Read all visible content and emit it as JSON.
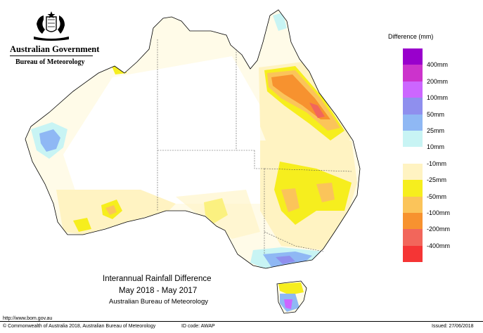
{
  "header": {
    "government": "Australian Government",
    "bureau": "Bureau of Meteorology",
    "crest_icon": "coat-of-arms-icon"
  },
  "titles": {
    "line1": "Interannual Rainfall Difference",
    "line2": "May 2018 - May 2017",
    "line3": "Australian Bureau of Meteorology"
  },
  "legend": {
    "title": "Difference (mm)",
    "colors": [
      "#9900cc",
      "#cc33cc",
      "#cc66ff",
      "#8f8fee",
      "#8fb8f4",
      "#c8f4f4",
      "#ffffff",
      "#fff3c2",
      "#f6ee1e",
      "#fbc45a",
      "#f7922f",
      "#f2665b",
      "#f53535"
    ],
    "labels": [
      "400mm",
      "200mm",
      "100mm",
      "50mm",
      "25mm",
      "10mm",
      "-10mm",
      "-25mm",
      "-50mm",
      "-100mm",
      "-200mm",
      "-400mm"
    ]
  },
  "footer": {
    "url": "http://www.bom.gov.au",
    "copyright": "© Commonwealth of Australia 2018, Australian Bureau of Meteorology",
    "id_code": "ID code: AWAP",
    "issued": "Issued: 27/06/2018"
  }
}
